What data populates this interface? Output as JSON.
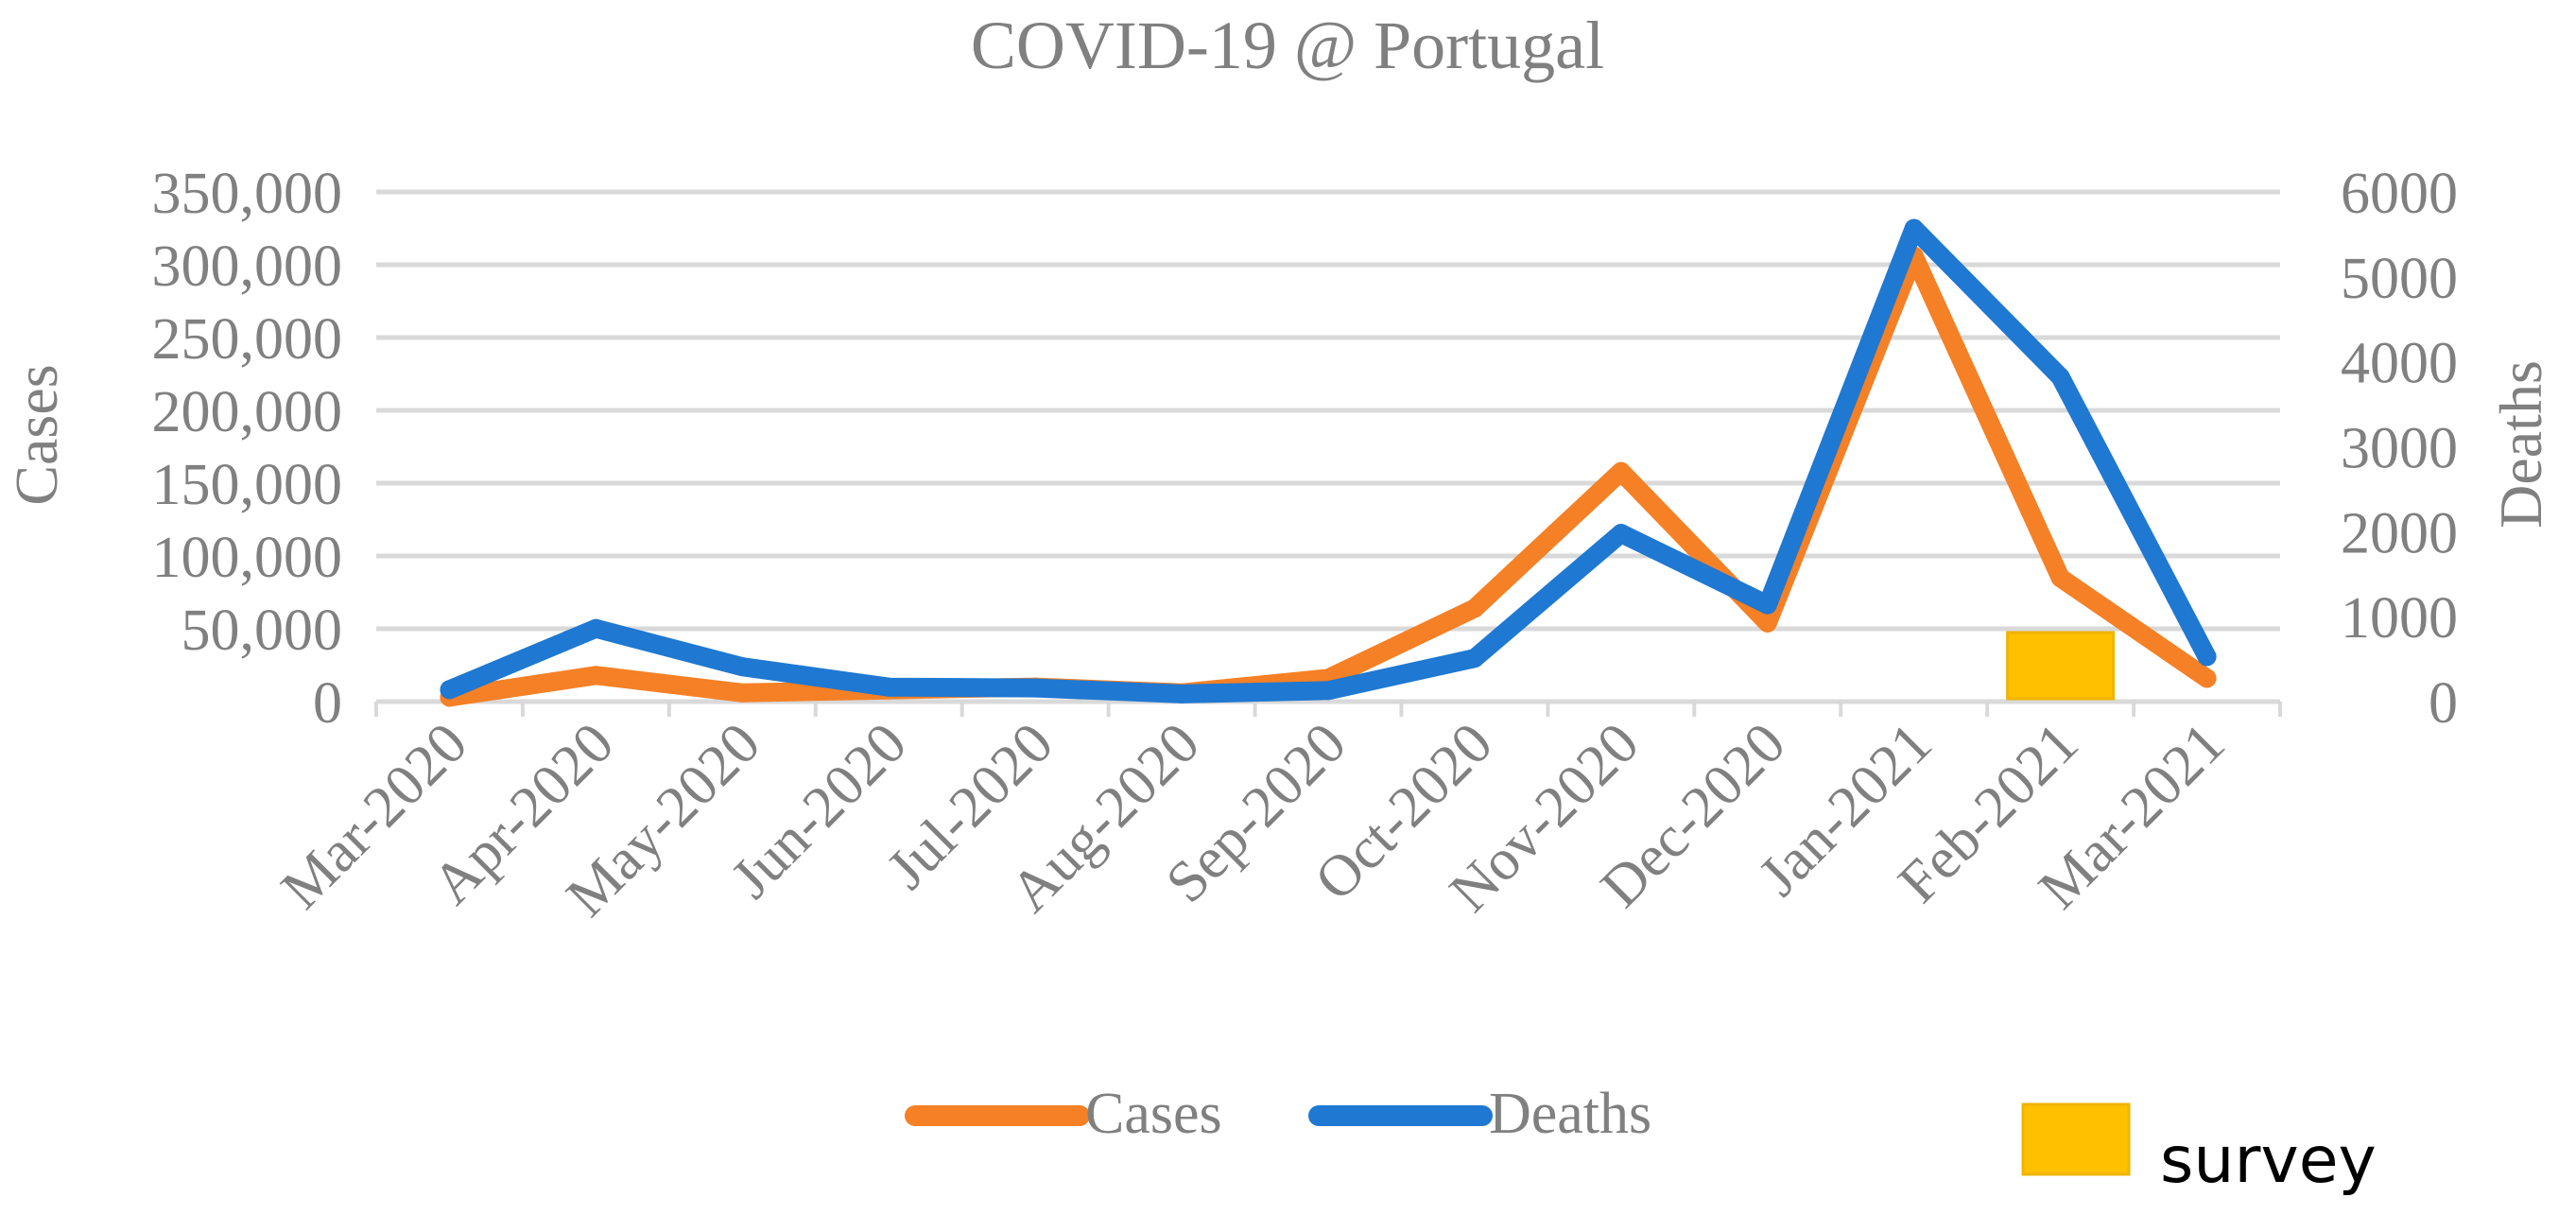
{
  "chart_data": {
    "type": "line",
    "title": "COVID-19 @ Portugal",
    "categories": [
      "Mar-2020",
      "Apr-2020",
      "May-2020",
      "Jun-2020",
      "Jul-2020",
      "Aug-2020",
      "Sep-2020",
      "Oct-2020",
      "Nov-2020",
      "Dec-2020",
      "Jan-2021",
      "Feb-2021",
      "Mar-2021"
    ],
    "y_left": {
      "label": "Cases",
      "range": [
        0,
        350000
      ],
      "ticks": [
        0,
        50000,
        100000,
        150000,
        200000,
        250000,
        300000,
        350000
      ],
      "tick_labels": [
        "0",
        "50,000",
        "100,000",
        "150,000",
        "200,000",
        "250,000",
        "300,000",
        "350,000"
      ]
    },
    "y_right": {
      "label": "Deaths",
      "range": [
        0,
        6000
      ],
      "ticks": [
        0,
        1000,
        2000,
        3000,
        4000,
        5000,
        6000
      ],
      "tick_labels": [
        "0",
        "1000",
        "2000",
        "3000",
        "4000",
        "5000",
        "6000"
      ]
    },
    "series": [
      {
        "name": "Cases",
        "axis": "left",
        "color": "#F58025",
        "values": [
          3000,
          18000,
          6000,
          8000,
          10000,
          6000,
          16000,
          64000,
          158000,
          54000,
          306000,
          85000,
          16000
        ]
      },
      {
        "name": "Deaths",
        "axis": "right",
        "color": "#1F78D1",
        "values": [
          140,
          860,
          410,
          170,
          160,
          90,
          130,
          510,
          1980,
          1140,
          5570,
          3820,
          530
        ]
      }
    ],
    "annotation": {
      "label": "survey",
      "category": "Feb-2021",
      "color": "#FFC000",
      "border_color": "#F0B400"
    },
    "legend": {
      "position": "bottom",
      "entries": [
        "Cases",
        "Deaths"
      ],
      "extra_entry": "survey"
    },
    "grid": true,
    "text_color": "#808080",
    "grid_color": "#D9D9D9"
  }
}
